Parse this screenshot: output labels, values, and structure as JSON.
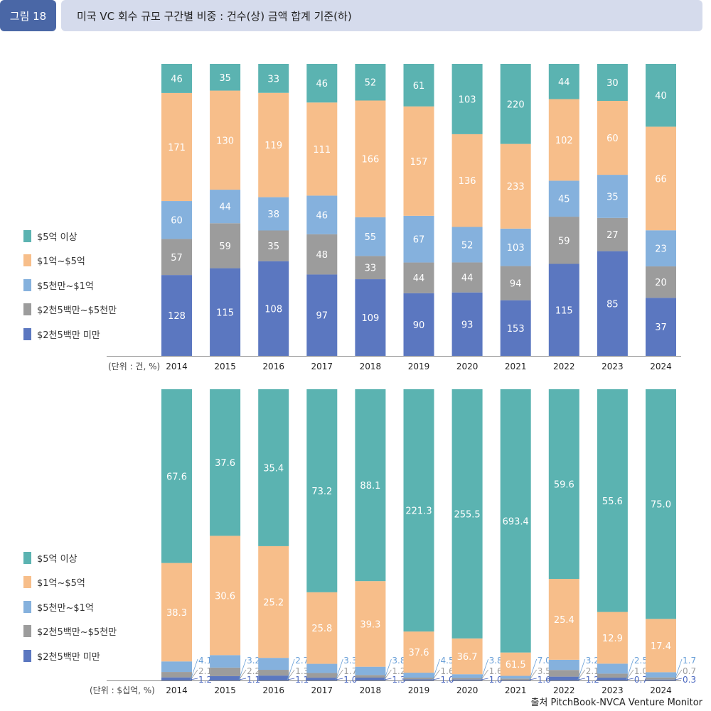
{
  "header": {
    "figure_label": "그림 18",
    "title": "미국 VC 회수 규모 구간별 비중 : 건수(상) 금액 합계 기준(하)"
  },
  "colors": {
    "over_500m": "#5bb3b1",
    "100m_500m": "#f7be8a",
    "50m_100m": "#85b1dd",
    "25m_50m": "#9c9c9c",
    "under_25m": "#5b77c0"
  },
  "chart_data": [
    {
      "type": "bar",
      "stacked": true,
      "normalized": true,
      "unit_label": "(단위 : 건, %)",
      "categories": [
        "2014",
        "2015",
        "2016",
        "2017",
        "2018",
        "2019",
        "2020",
        "2021",
        "2022",
        "2023",
        "2024"
      ],
      "series": [
        {
          "name": "$2천5백만 미만",
          "color_key": "under_25m",
          "values": [
            128,
            115,
            108,
            97,
            109,
            90,
            93,
            153,
            115,
            85,
            37
          ]
        },
        {
          "name": "$2천5백만~$5천만",
          "color_key": "25m_50m",
          "values": [
            57,
            59,
            35,
            48,
            33,
            44,
            44,
            94,
            59,
            27,
            20
          ]
        },
        {
          "name": "$5천만~$1억",
          "color_key": "50m_100m",
          "values": [
            60,
            44,
            38,
            46,
            55,
            67,
            52,
            103,
            45,
            35,
            23
          ]
        },
        {
          "name": "$1억~$5억",
          "color_key": "100m_500m",
          "values": [
            171,
            130,
            119,
            111,
            166,
            157,
            136,
            233,
            102,
            60,
            66
          ]
        },
        {
          "name": "$5억 이상",
          "color_key": "over_500m",
          "values": [
            46,
            35,
            33,
            46,
            52,
            61,
            103,
            220,
            44,
            30,
            40
          ]
        }
      ]
    },
    {
      "type": "bar",
      "stacked": true,
      "normalized": true,
      "unit_label": "(단위 : $십억, %)",
      "categories": [
        "2014",
        "2015",
        "2016",
        "2017",
        "2018",
        "2019",
        "2020",
        "2021",
        "2022",
        "2023",
        "2024"
      ],
      "series": [
        {
          "name": "$2천5백만 미만",
          "color_key": "under_25m",
          "values": [
            1.2,
            1.1,
            1.1,
            1.0,
            1.3,
            1.0,
            1.0,
            1.6,
            1.2,
            0.7,
            0.3
          ]
        },
        {
          "name": "$2천5백만~$5천만",
          "color_key": "25m_50m",
          "values": [
            2.1,
            2.2,
            1.3,
            1.7,
            1.2,
            1.6,
            1.6,
            3.5,
            2.1,
            1.0,
            0.7
          ]
        },
        {
          "name": "$5천만~$1억",
          "color_key": "50m_100m",
          "values": [
            4.1,
            3.2,
            2.7,
            3.3,
            3.8,
            4.5,
            3.8,
            7.0,
            3.2,
            2.5,
            1.7
          ]
        },
        {
          "name": "$1억~$5억",
          "color_key": "100m_500m",
          "values": [
            38.3,
            30.6,
            25.2,
            25.8,
            39.3,
            37.6,
            36.7,
            61.5,
            25.4,
            12.9,
            17.4
          ]
        },
        {
          "name": "$5억 이상",
          "color_key": "over_500m",
          "values": [
            67.6,
            37.6,
            35.4,
            73.2,
            88.1,
            221.3,
            255.5,
            693.4,
            59.6,
            55.6,
            75.0
          ]
        }
      ]
    }
  ],
  "legend": [
    "$5억 이상",
    "$1억~$5억",
    "$5천만~$1억",
    "$2천5백만~$5천만",
    "$2천5백만 미만"
  ],
  "source": "출처 PitchBook-NVCA Venture Monitor"
}
